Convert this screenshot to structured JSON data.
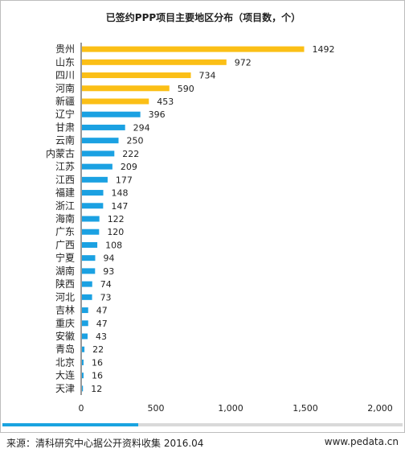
{
  "chart_data": {
    "type": "bar",
    "orientation": "horizontal",
    "title": "已签约PPP项目主要地区分布（项目数，个）",
    "categories": [
      "贵州",
      "山东",
      "四川",
      "河南",
      "新疆",
      "辽宁",
      "甘肃",
      "云南",
      "内蒙古",
      "江苏",
      "江西",
      "福建",
      "浙江",
      "海南",
      "广东",
      "广西",
      "宁夏",
      "湖南",
      "陕西",
      "河北",
      "吉林",
      "重庆",
      "安徽",
      "青岛",
      "北京",
      "大连",
      "天津"
    ],
    "values": [
      1492,
      972,
      734,
      590,
      453,
      396,
      294,
      250,
      222,
      209,
      177,
      148,
      147,
      122,
      120,
      108,
      94,
      93,
      74,
      73,
      47,
      47,
      43,
      22,
      16,
      16,
      12
    ],
    "highlight_count": 5,
    "colors": {
      "highlight": "#fbbf16",
      "normal": "#1ba1e2"
    },
    "xlim": [
      0,
      2000
    ],
    "x_ticks": [
      0,
      500,
      1000,
      1500,
      2000
    ],
    "x_tick_labels": [
      "0",
      "500",
      "1,000",
      "1,500",
      "2,000"
    ],
    "grid": false,
    "legend": "none"
  },
  "footer": {
    "source": "来源：清科研究中心据公开资料收集 2016.04",
    "url": "www.pedata.cn"
  },
  "progress": {
    "fraction": 0.34
  }
}
